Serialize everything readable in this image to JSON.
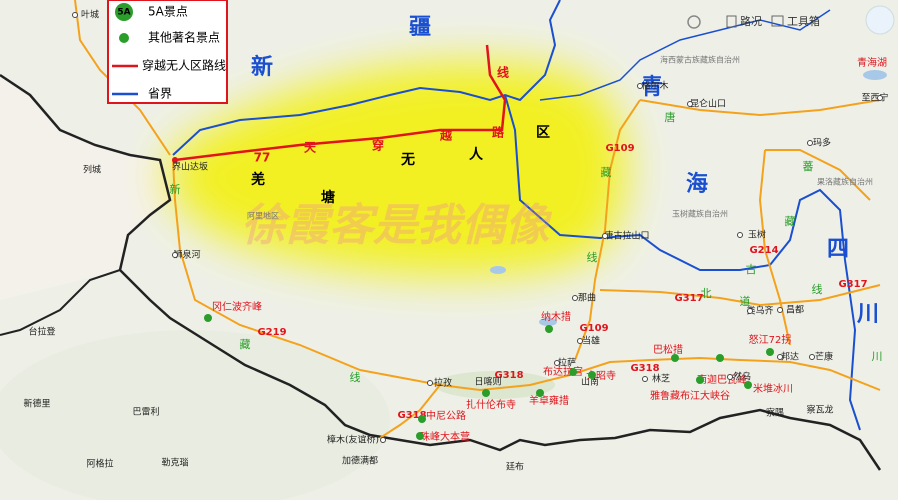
{
  "legend": {
    "badge": "5A",
    "items": [
      "5A景点",
      "其他著名景点",
      "穿越无人区路线",
      "省界"
    ]
  },
  "toolbar": {
    "traffic": "路况",
    "toolbox": "工具箱"
  },
  "watermark": "徐霞客是我偶像",
  "region_labels": [
    "新",
    "疆",
    "青",
    "海",
    "四",
    "川"
  ],
  "route_labels": [
    "77",
    "天",
    "穿",
    "越",
    "路",
    "线"
  ],
  "area_labels": [
    "羌",
    "塘",
    "无",
    "人",
    "区"
  ],
  "road_names": [
    "G219",
    "G109",
    "G109",
    "G317",
    "G214",
    "G318",
    "G318",
    "G318",
    "G317"
  ],
  "road_markers": [
    "新",
    "藏",
    "线",
    "藏",
    "线",
    "北",
    "道",
    "古",
    "藏",
    "线",
    "唐",
    "蕃",
    "川"
  ],
  "attractions": [
    "冈仁波齐峰",
    "纳木措",
    "布达拉宫",
    "大昭寺",
    "扎什伦布寺",
    "羊卓雍措",
    "巴松措",
    "南迦巴瓦峰",
    "雅鲁藏布江大峡谷",
    "米堆冰川",
    "怒江72拐",
    "中尼公路",
    "珠峰大本营",
    "青海湖"
  ],
  "places": [
    "叶城",
    "界山达坂",
    "狮泉河",
    "格尔木",
    "昆仑山口",
    "唐古拉山口",
    "玉树",
    "玛多",
    "那曲",
    "当雄",
    "拉孜",
    "日喀则",
    "拉萨",
    "山南",
    "林芝",
    "然乌",
    "邦达",
    "昌都",
    "类乌齐",
    "芒康",
    "察隅",
    "察瓦龙",
    "樟木(友谊桥)",
    "加德满都",
    "廷布",
    "至西宁",
    "列城",
    "新德里",
    "巴雷利",
    "阿格拉",
    "勒克瑙",
    "台拉登"
  ],
  "districts": [
    "海西蒙古族藏族自治州",
    "玉树藏族自治州",
    "果洛藏族自治州",
    "阿里地区"
  ]
}
